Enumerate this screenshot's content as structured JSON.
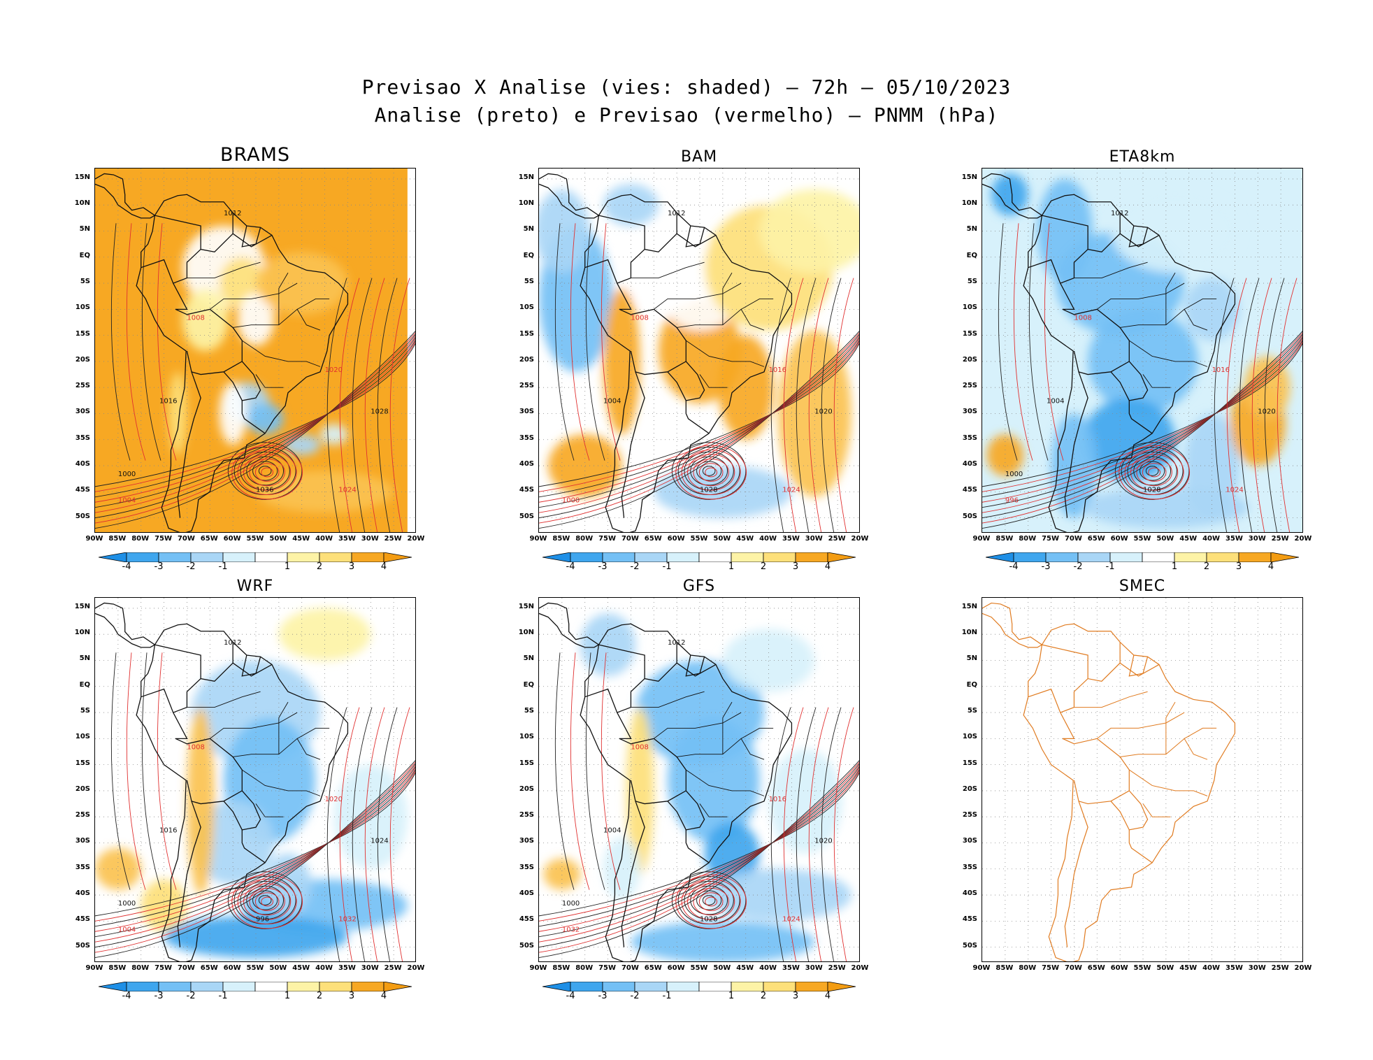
{
  "title_line1": "Previsao X Analise (vies: shaded) – 72h – 05/10/2023",
  "title_line2": "Analise (preto) e Previsao (vermelho) – PNMM (hPa)",
  "lat_labels": [
    "15N",
    "10N",
    "5N",
    "EQ",
    "5S",
    "10S",
    "15S",
    "20S",
    "25S",
    "30S",
    "35S",
    "40S",
    "45S",
    "50S"
  ],
  "lon_labels": [
    "90W",
    "85W",
    "80W",
    "75W",
    "70W",
    "65W",
    "60W",
    "55W",
    "50W",
    "45W",
    "40W",
    "35W",
    "30W",
    "25W",
    "20W"
  ],
  "colorbar": {
    "ticks": [
      "-4",
      "-3",
      "-2",
      "-1",
      "1",
      "2",
      "3",
      "4"
    ],
    "colors": [
      "#3fa6ee",
      "#74c0f5",
      "#a9d6f6",
      "#d7f1fb",
      "#ffffff",
      "#fdf3a6",
      "#fde07a",
      "#fbc250",
      "#f7a823",
      "#f39c12"
    ]
  },
  "panels": [
    {
      "name": "BRAMS",
      "bias": "warm"
    },
    {
      "name": "BAM",
      "bias": "mixed"
    },
    {
      "name": "ETA8km",
      "bias": "cool"
    },
    {
      "name": "WRF",
      "bias": "cool-mixed"
    },
    {
      "name": "GFS",
      "bias": "cool"
    },
    {
      "name": "SMEC",
      "bias": "empty"
    }
  ],
  "isobar_labels": {
    "BRAMS": [
      "1012",
      "1008",
      "1016",
      "1020",
      "1028",
      "1024",
      "1036",
      "1004",
      "1000"
    ],
    "BAM": [
      "1012",
      "1008",
      "1004",
      "1016",
      "1020",
      "1024",
      "1028",
      "1000"
    ],
    "ETA8km": [
      "1012",
      "1008",
      "1004",
      "1016",
      "1020",
      "1024",
      "1028",
      "996",
      "1000"
    ],
    "WRF": [
      "1012",
      "1008",
      "1016",
      "1020",
      "1024",
      "1032",
      "996",
      "1004",
      "1000"
    ],
    "GFS": [
      "1012",
      "1008",
      "1004",
      "1016",
      "1020",
      "1024",
      "1028",
      "1032",
      "1000"
    ]
  }
}
